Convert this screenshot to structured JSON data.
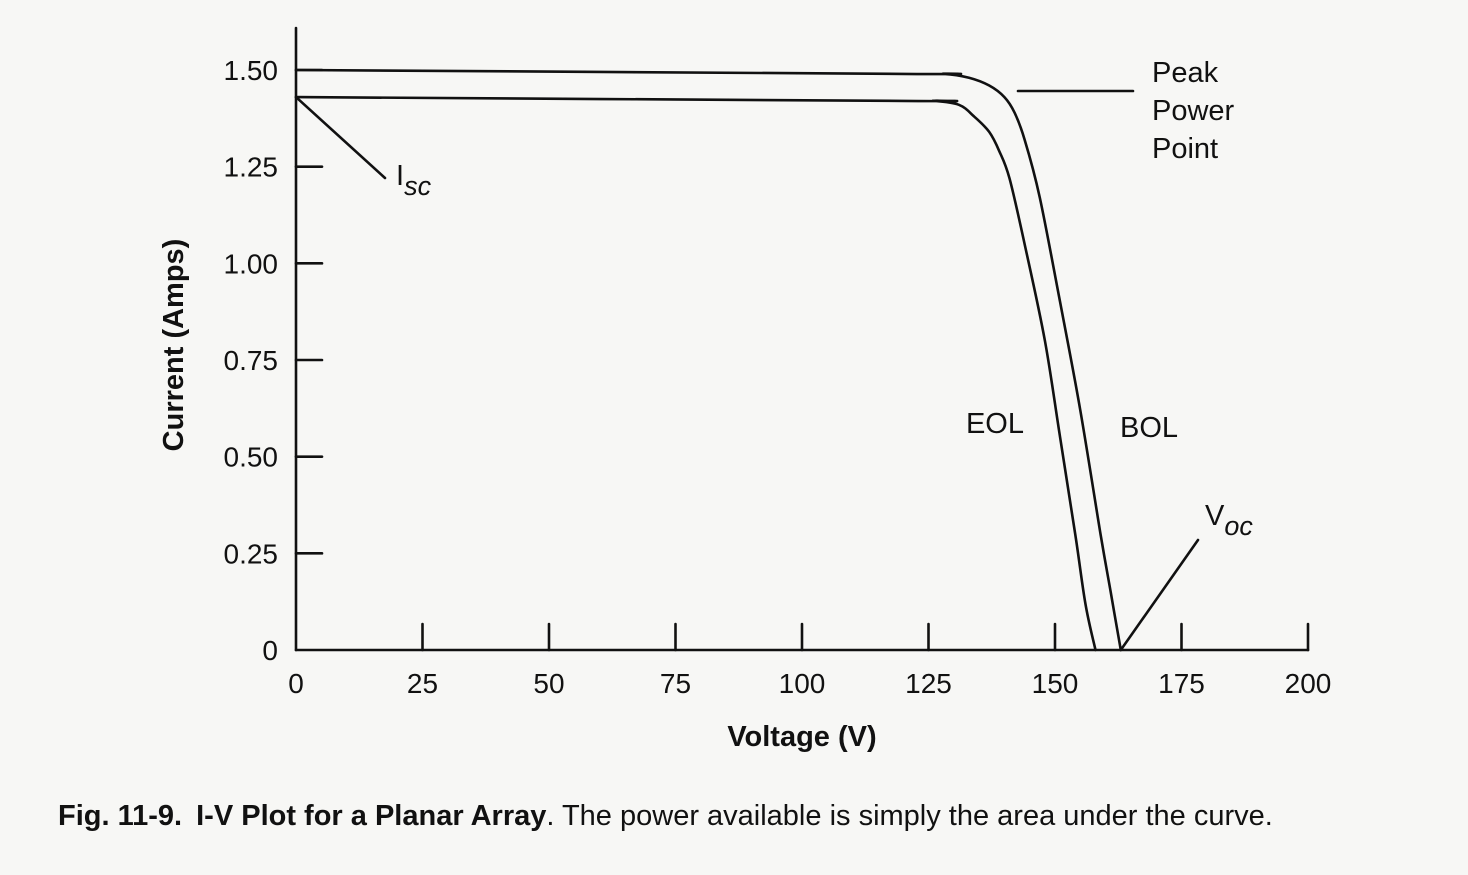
{
  "chart_data": {
    "type": "line",
    "title": "",
    "xlabel": "Voltage (V)",
    "ylabel": "Current (Amps)",
    "xlim": [
      0,
      200
    ],
    "ylim": [
      0,
      1.5
    ],
    "x_ticks": [
      "0",
      "25",
      "50",
      "75",
      "100",
      "125",
      "150",
      "175",
      "200"
    ],
    "y_ticks": [
      "0",
      "0.25",
      "0.50",
      "0.75",
      "1.00",
      "1.25",
      "1.50"
    ],
    "grid": false,
    "series": [
      {
        "name": "BOL",
        "x": [
          0,
          120,
          128,
          133,
          137,
          140,
          142,
          144,
          147,
          151,
          155,
          159,
          161,
          163
        ],
        "y": [
          1.5,
          1.49,
          1.49,
          1.48,
          1.46,
          1.43,
          1.39,
          1.32,
          1.17,
          0.9,
          0.62,
          0.3,
          0.15,
          0
        ]
      },
      {
        "name": "EOL",
        "x": [
          0,
          120,
          126,
          131,
          134,
          137,
          139,
          141,
          144,
          148,
          151,
          154,
          156,
          158
        ],
        "y": [
          1.43,
          1.42,
          1.42,
          1.41,
          1.38,
          1.34,
          1.29,
          1.22,
          1.05,
          0.8,
          0.55,
          0.3,
          0.12,
          0
        ]
      }
    ],
    "annotations": {
      "isc_main": "I",
      "isc_sub": "sc",
      "voc_main": "V",
      "voc_sub": "oc",
      "peak_line1": "Peak",
      "peak_line2": "Power",
      "peak_line3": "Point"
    }
  },
  "caption": {
    "number": "Fig. 11-9.",
    "title": "I-V Plot for a Planar Array",
    "text": ". The power available is simply the area under the curve."
  }
}
